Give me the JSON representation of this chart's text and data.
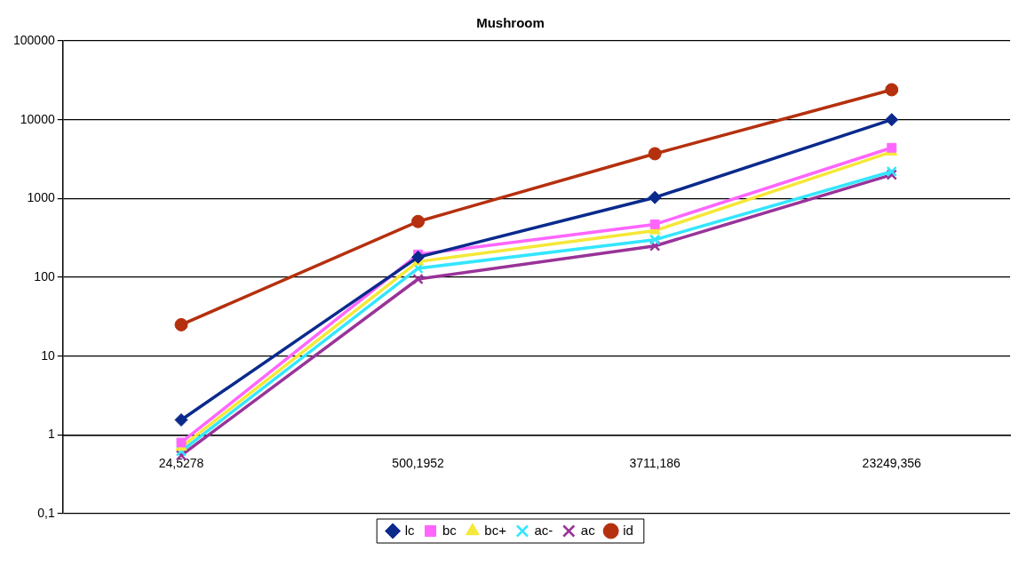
{
  "chart_data": {
    "type": "line",
    "title": "Mushroom",
    "categories": [
      "24,5278",
      "500,1952",
      "3711,186",
      "23249,356"
    ],
    "series": [
      {
        "name": "lc",
        "color": "#0a2a8c",
        "marker": "diamond",
        "values": [
          1.55,
          180,
          1030,
          10000
        ]
      },
      {
        "name": "bc",
        "color": "#ff66ff",
        "marker": "square",
        "values": [
          0.8,
          195,
          470,
          4400
        ]
      },
      {
        "name": "bc+",
        "color": "#f5e837",
        "marker": "triangle",
        "values": [
          0.7,
          158,
          390,
          3900
        ]
      },
      {
        "name": "ac-",
        "color": "#33e6ff",
        "marker": "cross",
        "values": [
          0.62,
          130,
          300,
          2200
        ]
      },
      {
        "name": "ac",
        "color": "#993399",
        "marker": "cross",
        "values": [
          0.55,
          95,
          250,
          2000
        ]
      },
      {
        "name": "id",
        "color": "#b5300e",
        "marker": "circle",
        "values": [
          25,
          510,
          3700,
          24000
        ]
      }
    ],
    "log": "y",
    "ylim": [
      0.1,
      100000
    ],
    "yticks": [
      {
        "value": 0.1,
        "label": "0,1"
      },
      1,
      10,
      100,
      1000,
      10000,
      100000
    ],
    "grid": "y",
    "legend": "bottom",
    "line_style": "solid"
  }
}
